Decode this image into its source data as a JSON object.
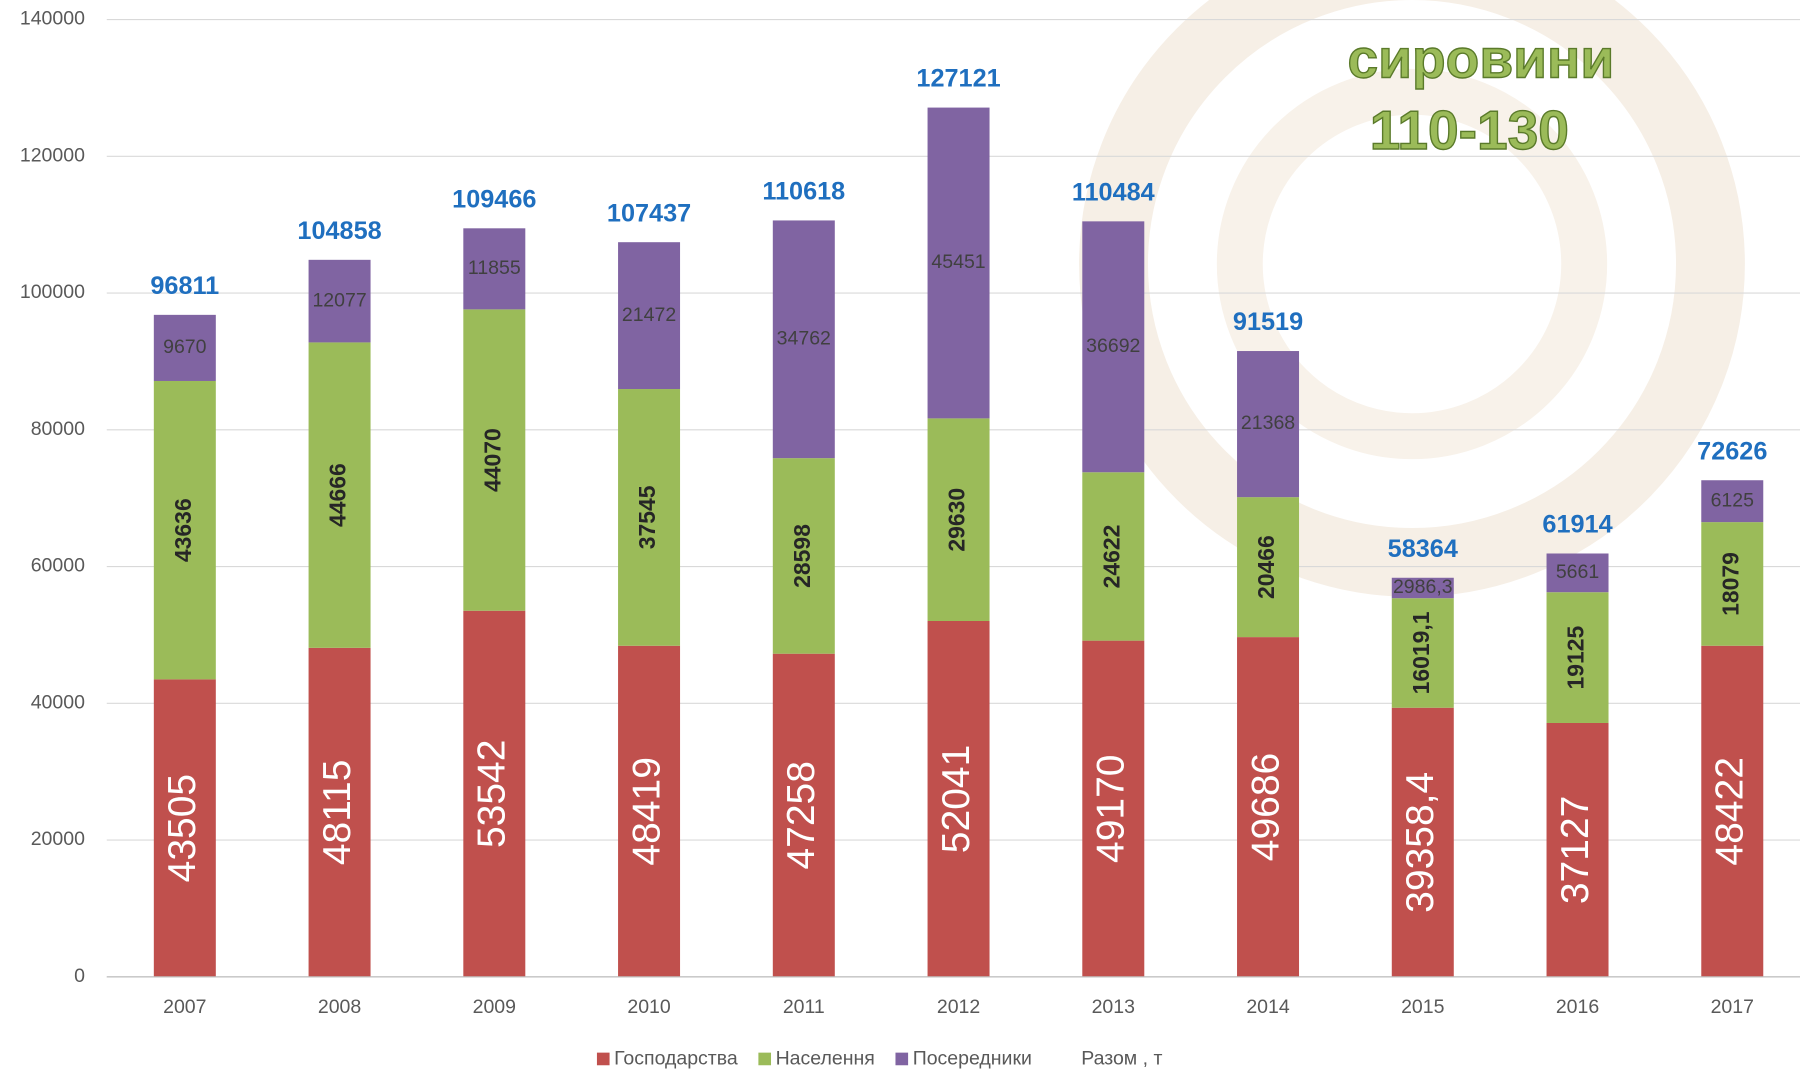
{
  "chart_data": {
    "type": "stacked_bar",
    "annotations": [
      "сировини",
      "110-130"
    ],
    "categories": [
      "2007",
      "2008",
      "2009",
      "2010",
      "2011",
      "2012",
      "2013",
      "2014",
      "2015",
      "2016",
      "2017"
    ],
    "series": [
      {
        "name": "Господарства",
        "color": "#c0504d",
        "values": [
          43505,
          48115,
          53542,
          48419,
          47258,
          52041,
          49170,
          49686,
          39358.4,
          37127,
          48422
        ],
        "value_labels": [
          "43505",
          "48115",
          "53542",
          "48419",
          "47258",
          "52041",
          "49170",
          "49686",
          "39358,4",
          "37127",
          "48422"
        ]
      },
      {
        "name": "Населення",
        "color": "#9bbb59",
        "values": [
          43636,
          44666,
          44070,
          37545,
          28598,
          29630,
          24622,
          20466,
          16019.1,
          19125,
          18079
        ],
        "value_labels": [
          "43636",
          "44666",
          "44070",
          "37545",
          "28598",
          "29630",
          "24622",
          "20466",
          "16019,1",
          "19125",
          "18079"
        ]
      },
      {
        "name": "Посередники",
        "color": "#8064a2",
        "values": [
          9670,
          12077,
          11855,
          21472,
          34762,
          45451,
          36692,
          21368,
          2986.3,
          5661,
          6125
        ],
        "value_labels": [
          "9670",
          "12077",
          "11855",
          "21472",
          "34762",
          "45451",
          "36692",
          "21368",
          "2986,3",
          "5661",
          "6125"
        ]
      }
    ],
    "totals": {
      "name": "Разом , т",
      "color": "#1f6fbf",
      "values": [
        96811,
        104858,
        109466,
        107437,
        110618,
        127121,
        110484,
        91519,
        58364,
        61914,
        72626
      ]
    },
    "ylim": [
      0,
      140000
    ],
    "yticks": [
      0,
      20000,
      40000,
      60000,
      80000,
      100000,
      120000,
      140000
    ],
    "grid": true,
    "legend": "bottom"
  }
}
